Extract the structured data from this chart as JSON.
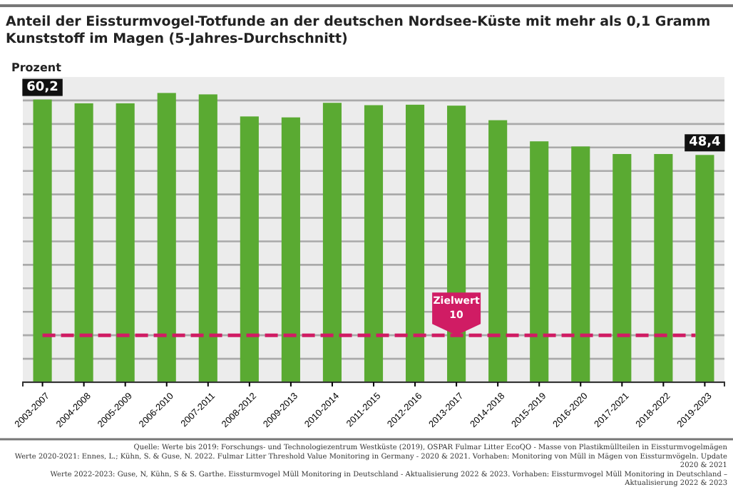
{
  "chart_data": {
    "type": "bar",
    "title": "Anteil der Eissturmvogel-Totfunde an der deutschen Nordsee-Küste mit mehr als 0,1 Gramm Kunststoff im Magen (5-Jahres-Durchschnitt)",
    "ylabel": "Prozent",
    "categories": [
      "2003-2007",
      "2004-2008",
      "2005-2009",
      "2006-2010",
      "2007-2011",
      "2008-2012",
      "2009-2013",
      "2010-2014",
      "2011-2015",
      "2012-2016",
      "2013-2017",
      "2014-2018",
      "2015-2019",
      "2016-2020",
      "2017-2021",
      "2018-2022",
      "2019-2023"
    ],
    "values": [
      60.2,
      59.4,
      59.4,
      61.6,
      61.3,
      56.6,
      56.4,
      59.5,
      59.0,
      59.1,
      58.9,
      55.8,
      51.3,
      50.2,
      48.6,
      48.6,
      48.4
    ],
    "value_labels": [
      "60,2",
      null,
      null,
      null,
      null,
      null,
      null,
      null,
      null,
      null,
      null,
      null,
      null,
      null,
      null,
      null,
      "48,4"
    ],
    "color": "#5aaa32",
    "ylim": [
      0,
      65
    ],
    "yticks": [
      {
        "value": 0,
        "label": null
      },
      {
        "value": 5,
        "label": null
      },
      {
        "value": 10,
        "label": null
      },
      {
        "value": 15,
        "label": null
      },
      {
        "value": 20,
        "label": null
      },
      {
        "value": 25,
        "label": null
      },
      {
        "value": 30,
        "label": null
      },
      {
        "value": 35,
        "label": null
      },
      {
        "value": 40,
        "label": null
      },
      {
        "value": 45,
        "label": null
      },
      {
        "value": 50,
        "label": null
      },
      {
        "value": 55,
        "label": null
      },
      {
        "value": 60,
        "label": null
      }
    ],
    "tick_labels": "x",
    "grid": "y",
    "ref_lines": [
      {
        "axis": "y",
        "value": 10,
        "label": "Zielwert 10",
        "color": "#d01c64",
        "line_style": "dashed"
      }
    ],
    "annotations": [
      "Quelle: Werte bis 2019: Forschungs- und Technologiezentrum Westküste (2019), OSPAR Fulmar Litter EcoQO - Masse von Plastikmüllteilen in Eissturmvogelmägen",
      "Werte 2020-2021: Ennes, L.; Kühn, S. & Guse, N. 2022. Fulmar Litter Threshold Value Monitoring in Germany - 2020 & 2021. Vorhaben: Monitoring von Müll in Mägen von Eissturmvögeln. Update 2020 & 2021",
      "Werte 2022-2023: Guse, N, Kühn, S & S. Garthe. Eissturmvogel Müll Monitoring in Deutschland - Aktualisierung 2022 & 2023. Vorhaben: Eissturmvogel Müll Monitoring in Deutschland – Aktualisierung 2022 & 2023"
    ]
  }
}
